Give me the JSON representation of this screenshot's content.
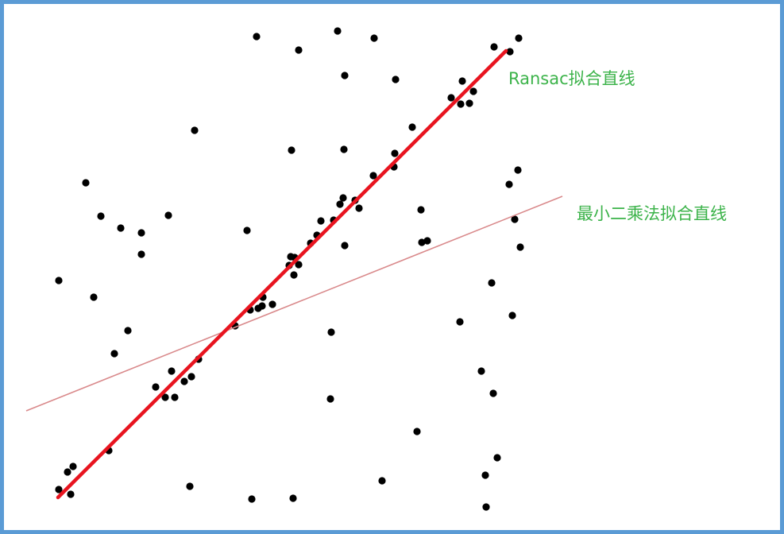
{
  "colors": {
    "border": "#5b9bd5",
    "point": "#000000",
    "ransac_line": "#e8141f",
    "lsq_line": "#d9898b",
    "label": "#3cb34a"
  },
  "labels": {
    "ransac": "Ransac拟合直线",
    "least_squares": "最小二乘法拟合直线"
  }
}
